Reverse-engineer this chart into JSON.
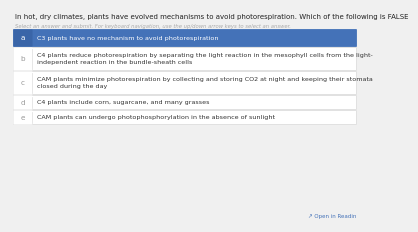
{
  "title": "In hot, dry climates, plants have evolved mechanisms to avoid photorespiration. Which of the following is FALSE",
  "subtitle": "Select an answer and submit. For keyboard navigation, use the up/down arrow keys to select an answer.",
  "options": [
    {
      "label": "a",
      "text": "C3 plants have no mechanism to avoid photorespiration",
      "selected": true,
      "lines": 1
    },
    {
      "label": "b",
      "text": "C4 plants reduce photorespiration by separating the light reaction in the mesophyll cells from the light-\nindependent reaction in the bundle-sheath cells",
      "selected": false,
      "lines": 2
    },
    {
      "label": "c",
      "text": "CAM plants minimize photorespiration by collecting and storing CO2 at night and keeping their stomata\nclosed during the day",
      "selected": false,
      "lines": 2
    },
    {
      "label": "d",
      "text": "C4 plants include corn, sugarcane, and many grasses",
      "selected": false,
      "lines": 1
    },
    {
      "label": "e",
      "text": "CAM plants can undergo photophosphorylation in the absence of sunlight",
      "selected": false,
      "lines": 1
    }
  ],
  "bg_color": "#f0f0f0",
  "card_bg": "#ffffff",
  "selected_bg": "#4472b8",
  "selected_label_bg": "#3a65a8",
  "unselected_label_color": "#999999",
  "selected_text_color": "#ffffff",
  "unselected_text_color": "#333333",
  "title_color": "#222222",
  "subtitle_color": "#aaaaaa",
  "border_color": "#dddddd",
  "selected_border_color": "#4472b8",
  "footer_text": "Open in Readin",
  "footer_color": "#4472b8"
}
